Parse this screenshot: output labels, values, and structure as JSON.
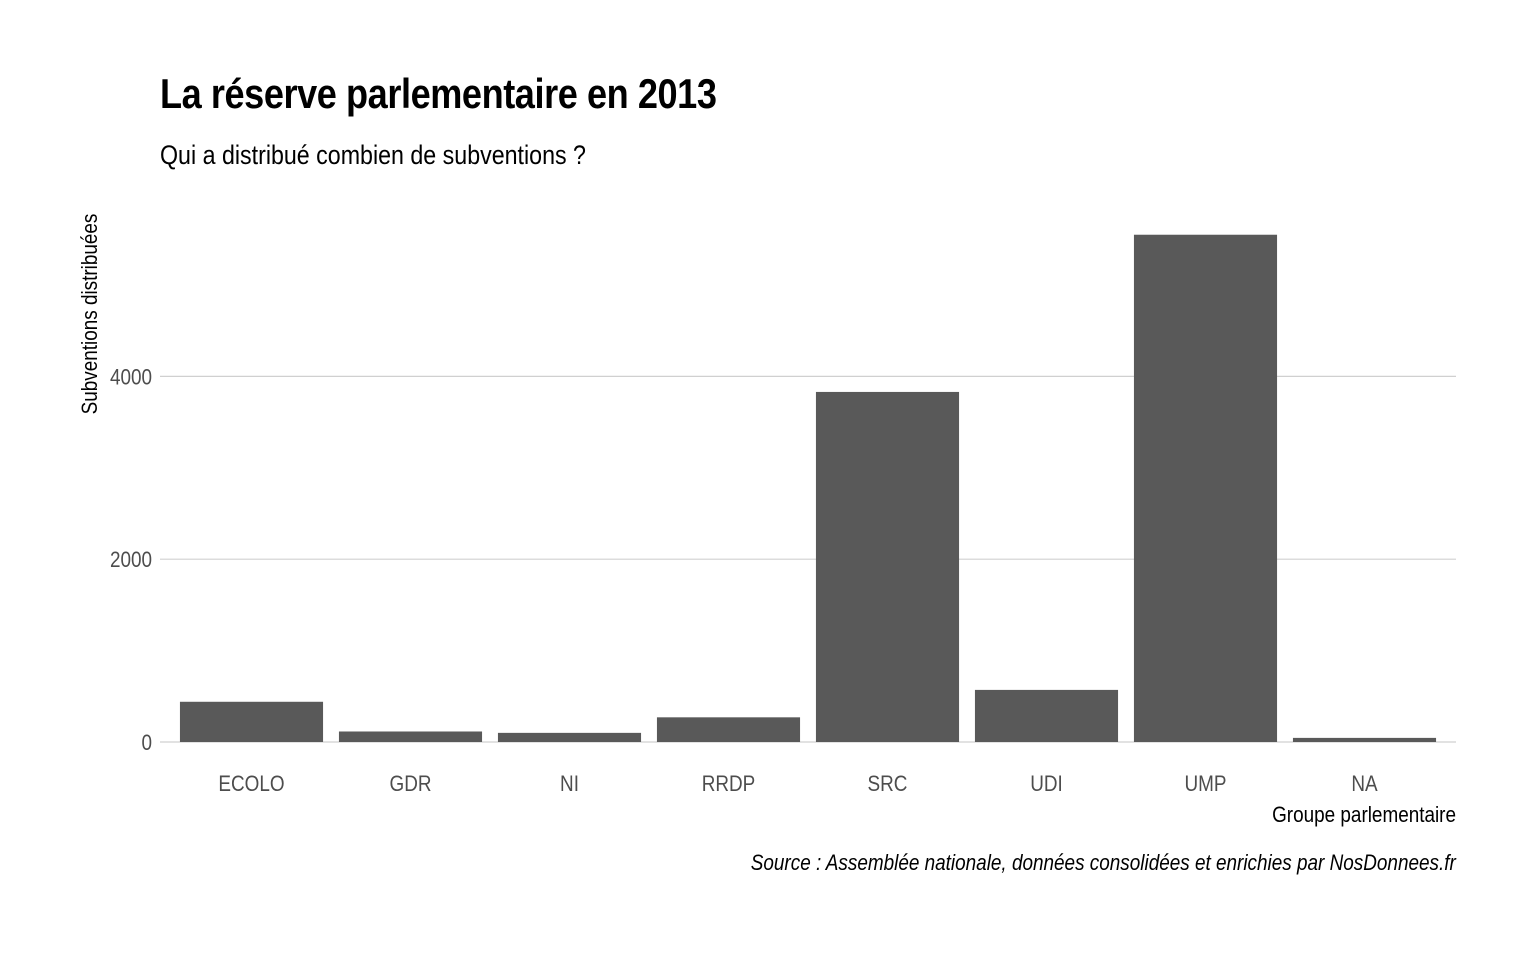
{
  "chart_data": {
    "type": "bar",
    "title": "La réserve parlementaire en 2013",
    "subtitle": "Qui a distribué combien de subventions ?",
    "caption": "Source : Assemblée nationale, données consolidées et enrichies par NosDonnees.fr",
    "xlabel": "Groupe parlementaire",
    "ylabel": "Subventions distribuées",
    "categories": [
      "ECOLO",
      "GDR",
      "NI",
      "RRDP",
      "SRC",
      "UDI",
      "UMP",
      "NA"
    ],
    "values": [
      440,
      115,
      100,
      270,
      3830,
      570,
      5550,
      45
    ],
    "yticks": [
      0,
      2000,
      4000
    ],
    "ytick_labels": [
      "0",
      "2000",
      "4000"
    ],
    "ylim": [
      0,
      5800
    ],
    "grid": true,
    "legend": "none",
    "bar_color": "#595959",
    "grid_color": "#d0d0d0",
    "tick_label_color": "#4d4d4d"
  }
}
